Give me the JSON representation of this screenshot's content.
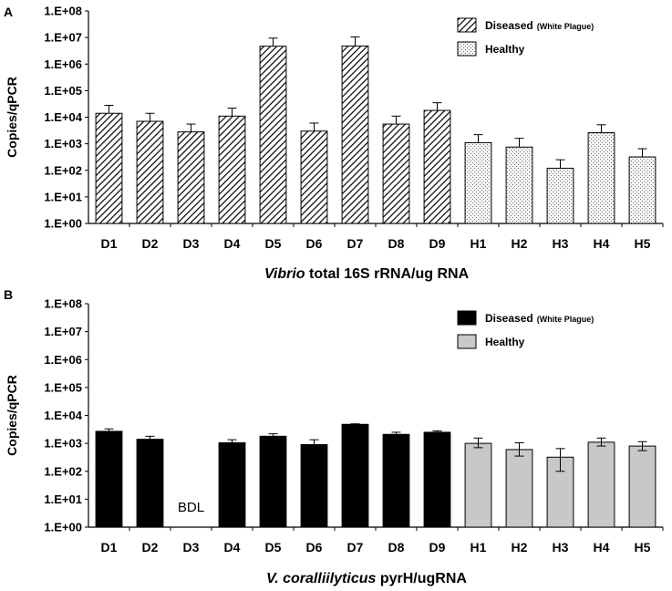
{
  "chart_data": [
    {
      "panel": "A",
      "type": "bar",
      "title": "",
      "ylabel": "Copies/qPCR",
      "xlabel_parts": [
        {
          "text": "Vibrio",
          "italic": true
        },
        {
          "text": "total 16S rRNA/ug RNA",
          "italic": false
        }
      ],
      "yscale": "log",
      "ylim": [
        1,
        100000000
      ],
      "yticks": [
        "1.E+00",
        "1.E+01",
        "1.E+02",
        "1.E+03",
        "1.E+04",
        "1.E+05",
        "1.E+06",
        "1.E+07",
        "1.E+08"
      ],
      "categories": [
        "D1",
        "D2",
        "D3",
        "D4",
        "D5",
        "D6",
        "D7",
        "D8",
        "D9",
        "H1",
        "H2",
        "H3",
        "H4",
        "H5"
      ],
      "values": [
        14000,
        7000,
        2800,
        11000,
        4700000,
        3000,
        4800000,
        5500,
        18000,
        1100,
        750,
        120,
        2600,
        320
      ],
      "error_upper": [
        28000,
        14000,
        5500,
        22000,
        9500000,
        6000,
        10500000,
        11000,
        35000,
        2200,
        1600,
        250,
        5200,
        650
      ],
      "groups": [
        "diseased",
        "diseased",
        "diseased",
        "diseased",
        "diseased",
        "diseased",
        "diseased",
        "diseased",
        "diseased",
        "healthy",
        "healthy",
        "healthy",
        "healthy",
        "healthy"
      ],
      "legend": [
        {
          "key": "diseased",
          "label": "Diseased",
          "note": "(White Plague)",
          "style": "hatch"
        },
        {
          "key": "healthy",
          "label": "Healthy",
          "note": "",
          "style": "dots"
        }
      ],
      "legend_position": "top-right",
      "annotations": []
    },
    {
      "panel": "B",
      "type": "bar",
      "title": "",
      "ylabel": "Copies/qPCR",
      "xlabel_parts": [
        {
          "text": "V. coralliilyticus",
          "italic": true
        },
        {
          "text": "pyrH/ugRNA",
          "italic": false
        }
      ],
      "yscale": "log",
      "ylim": [
        1,
        100000000
      ],
      "yticks": [
        "1.E+00",
        "1.E+01",
        "1.E+02",
        "1.E+03",
        "1.E+04",
        "1.E+05",
        "1.E+06",
        "1.E+07",
        "1.E+08"
      ],
      "categories": [
        "D1",
        "D2",
        "D3",
        "D4",
        "D5",
        "D6",
        "D7",
        "D8",
        "D9",
        "H1",
        "H2",
        "H3",
        "H4",
        "H5"
      ],
      "values": [
        2700,
        1400,
        null,
        1050,
        1800,
        900,
        4800,
        2100,
        2500,
        1000,
        600,
        320,
        1100,
        800
      ],
      "error_upper": [
        3300,
        1800,
        null,
        1350,
        2200,
        1350,
        5000,
        2500,
        2800,
        1550,
        1050,
        650,
        1550,
        1150
      ],
      "error_lower": [
        2400,
        1250,
        null,
        800,
        1550,
        650,
        4600,
        1800,
        2300,
        700,
        350,
        100,
        800,
        550
      ],
      "groups": [
        "diseased",
        "diseased",
        "diseased",
        "diseased",
        "diseased",
        "diseased",
        "diseased",
        "diseased",
        "diseased",
        "healthy",
        "healthy",
        "healthy",
        "healthy",
        "healthy"
      ],
      "legend": [
        {
          "key": "diseased",
          "label": "Diseased",
          "note": "(White Plague)",
          "style": "black"
        },
        {
          "key": "healthy",
          "label": "Healthy",
          "note": "",
          "style": "gray"
        }
      ],
      "legend_position": "top-right",
      "annotations": [
        {
          "category": "D3",
          "text": "BDL"
        }
      ]
    }
  ]
}
